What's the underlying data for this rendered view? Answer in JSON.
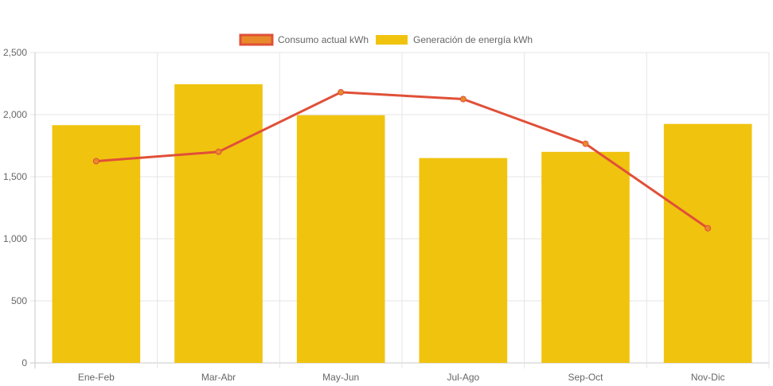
{
  "chart_data": {
    "type": "bar",
    "categories": [
      "Ene-Feb",
      "Mar-Abr",
      "May-Jun",
      "Jul-Ago",
      "Sep-Oct",
      "Nov-Dic"
    ],
    "series": [
      {
        "name": "Consumo actual kWh",
        "type": "line",
        "color": "#e05038",
        "values": [
          1625,
          1700,
          2180,
          2125,
          1765,
          1085
        ]
      },
      {
        "name": "Generación de energía kWh",
        "type": "bar",
        "color": "#f0c30f",
        "values": [
          1915,
          2245,
          1995,
          1650,
          1700,
          1925
        ]
      }
    ],
    "title": "",
    "xlabel": "",
    "ylabel": "",
    "ylim": [
      0,
      2500
    ],
    "yticks": [
      0,
      500,
      1000,
      1500,
      2000,
      2500
    ],
    "ytick_labels": [
      "0",
      "500",
      "1,000",
      "1,500",
      "2,000",
      "2,500"
    ],
    "grid": true,
    "legend_position": "top"
  }
}
